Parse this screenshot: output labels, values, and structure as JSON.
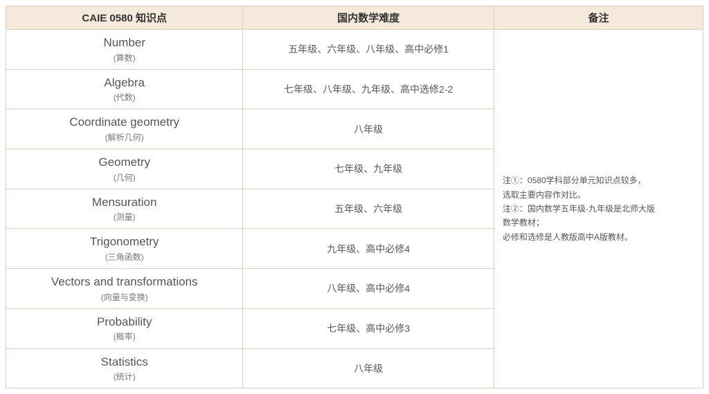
{
  "columns": {
    "topic": "CAIE 0580 知识点",
    "difficulty": "国内数学难度",
    "notes": "备注"
  },
  "rows": [
    {
      "topic_main": "Number",
      "topic_sub": "(算数)",
      "difficulty": "五年级、六年级、八年级、高中必修1"
    },
    {
      "topic_main": "Algebra",
      "topic_sub": "(代数)",
      "difficulty": "七年级、八年级、九年级、高中选修2-2"
    },
    {
      "topic_main": "Coordinate geometry",
      "topic_sub": "(解析几何)",
      "difficulty": "八年级"
    },
    {
      "topic_main": "Geometry",
      "topic_sub": "(几何)",
      "difficulty": "七年级、九年级"
    },
    {
      "topic_main": "Mensuration",
      "topic_sub": "(测量)",
      "difficulty": "五年级、六年级"
    },
    {
      "topic_main": "Trigonometry",
      "topic_sub": "(三角函数)",
      "difficulty": "九年级、高中必修4"
    },
    {
      "topic_main": "Vectors and transformations",
      "topic_sub": "(向量与变换)",
      "difficulty": "八年级、高中必修4"
    },
    {
      "topic_main": "Probability",
      "topic_sub": "(概率)",
      "difficulty": "七年级、高中必修3"
    },
    {
      "topic_main": "Statistics",
      "topic_sub": "(统计)",
      "difficulty": "八年级"
    }
  ],
  "notes_text": {
    "line1": "注①：0580学科部分单元知识点较多，",
    "line2": "选取主要内容作对比。",
    "line3": "注②：国内数学五年级-九年级是北师大版",
    "line4": "数学教材；",
    "line5": "必修和选修是人教版高中A版教材。"
  },
  "styling": {
    "header_background": "#f4e9db",
    "border_color": "#d9cdbf",
    "text_color": "#555555",
    "header_text_color": "#333333",
    "sub_text_color": "#777777",
    "background_color": "#ffffff",
    "header_fontsize": 15,
    "topic_main_fontsize": 17,
    "topic_sub_fontsize": 12,
    "difficulty_fontsize": 14,
    "notes_fontsize": 12,
    "column_widths": {
      "topic": "34%",
      "difficulty": "36%",
      "notes": "30%"
    }
  }
}
